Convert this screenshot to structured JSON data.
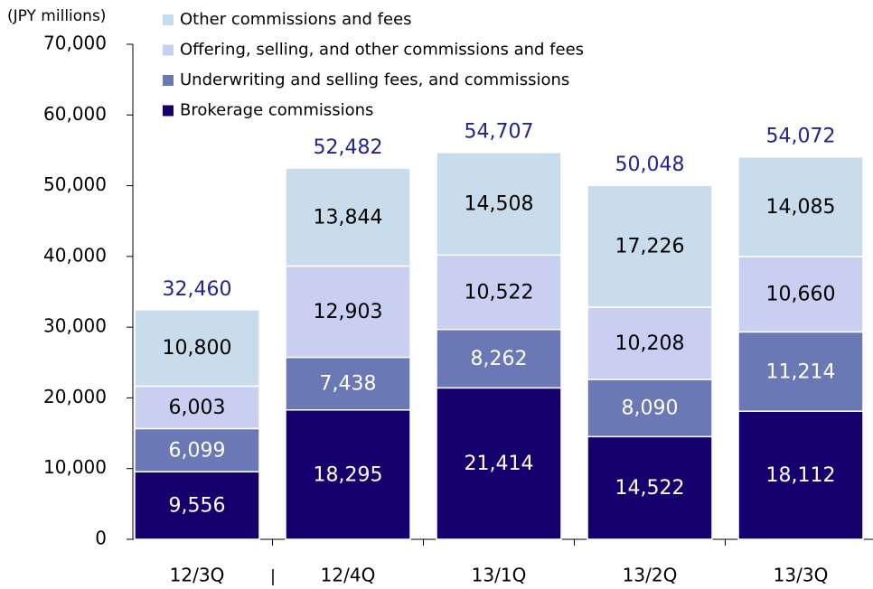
{
  "chart_data": {
    "type": "stacked_bar",
    "y_axis_label": "(JPY millions)",
    "categories": [
      "12/3Q",
      "12/4Q",
      "13/1Q",
      "13/2Q",
      "13/3Q"
    ],
    "series": [
      {
        "name": "Brokerage commissions",
        "color": "#16006e",
        "label_color": "#ffffff",
        "values": [
          9556,
          18295,
          21414,
          14522,
          18112
        ],
        "value_labels": [
          "9,556",
          "18,295",
          "21,414",
          "14,522",
          "18,112"
        ]
      },
      {
        "name": "Underwriting and selling fees, and commissions",
        "color": "#6a78b5",
        "label_color": "#ffffff",
        "values": [
          6099,
          7438,
          8262,
          8090,
          11214
        ],
        "value_labels": [
          "6,099",
          "7,438",
          "8,262",
          "8,090",
          "11,214"
        ]
      },
      {
        "name": "Offering, selling, and other commissions and fees",
        "color": "#c9cff0",
        "label_color": "#000000",
        "values": [
          6003,
          12903,
          10522,
          10208,
          10660
        ],
        "value_labels": [
          "6,003",
          "12,903",
          "10,522",
          "10,208",
          "10,660"
        ]
      },
      {
        "name": "Other commissions and fees",
        "color": "#c8dcec",
        "label_color": "#000000",
        "values": [
          10800,
          13844,
          14508,
          17226,
          14085
        ],
        "value_labels": [
          "10,800",
          "13,844",
          "14,508",
          "17,226",
          "14,085"
        ]
      }
    ],
    "totals": {
      "color": "#24248a",
      "values": [
        32460,
        52482,
        54707,
        50048,
        54072
      ],
      "value_labels": [
        "32,460",
        "52,482",
        "54,707",
        "50,048",
        "54,072"
      ]
    },
    "ylim": [
      0,
      70000
    ],
    "yticks": [
      0,
      {
        "value": 10000,
        "label": "10,000"
      },
      {
        "value": 20000,
        "label": "20,000"
      },
      {
        "value": 30000,
        "label": "30,000"
      },
      {
        "value": 40000,
        "label": "40,000"
      },
      {
        "value": 50000,
        "label": "50,000"
      },
      {
        "value": 60000,
        "label": "60,000"
      },
      {
        "value": 70000,
        "label": "70,000"
      }
    ],
    "grid": false,
    "legend": "top-left"
  }
}
